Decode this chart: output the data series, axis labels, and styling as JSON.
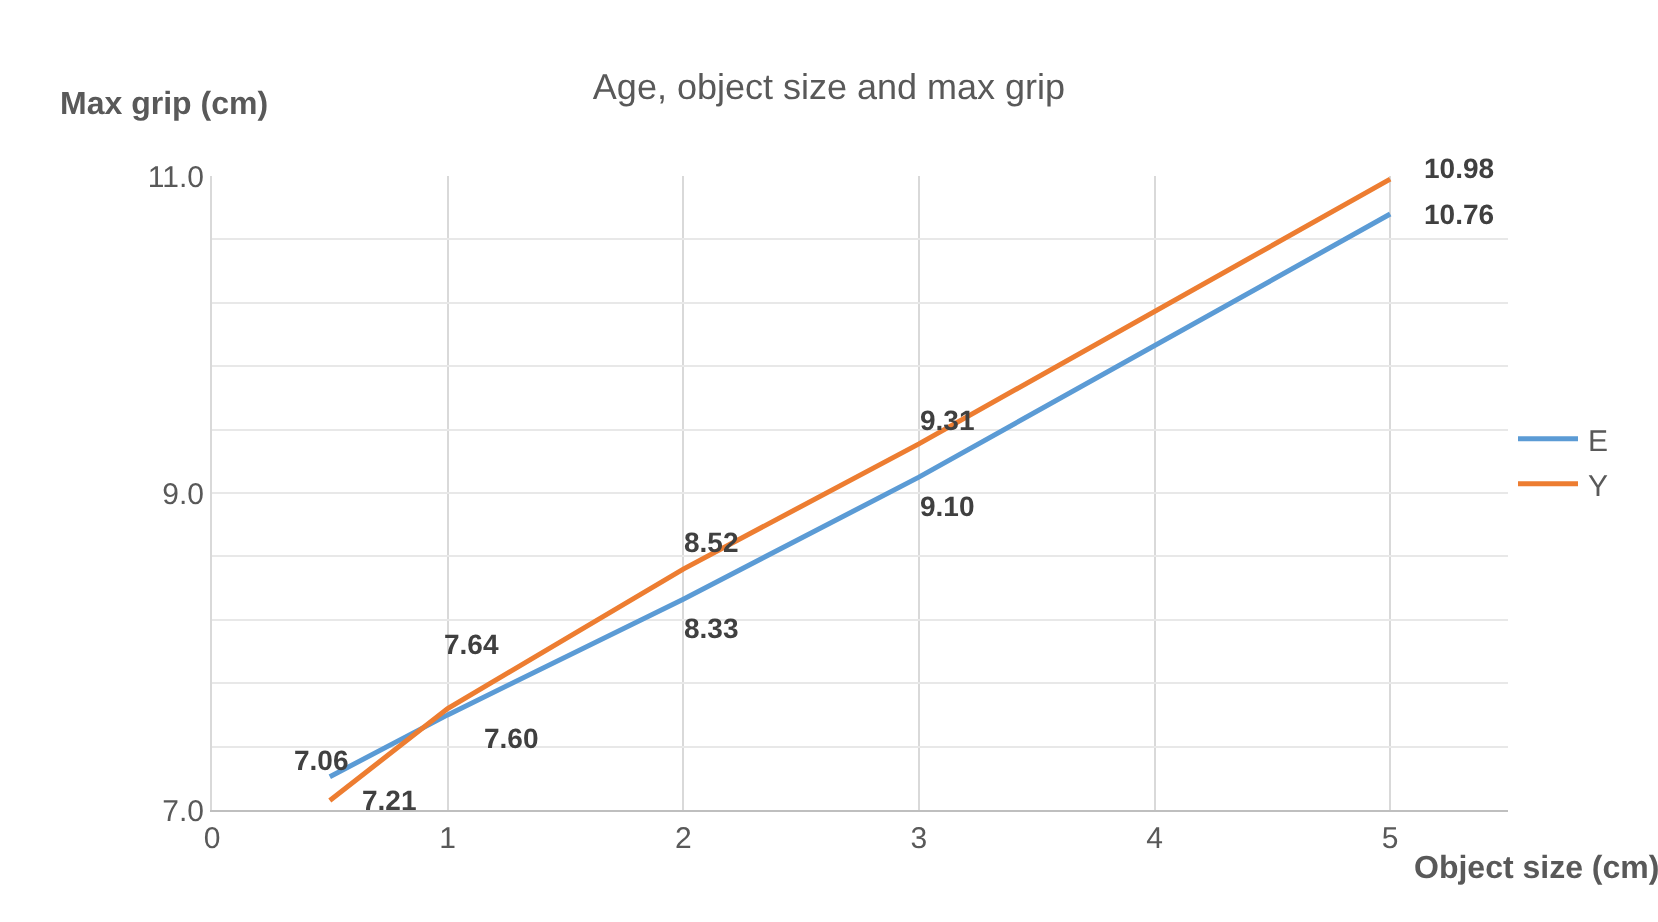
{
  "chart_data": {
    "type": "line",
    "title": "Age, object size and max grip",
    "xlabel": "Object size (cm)",
    "ylabel": "Max grip (cm)",
    "x": [
      0.5,
      1,
      2,
      3,
      5
    ],
    "series": [
      {
        "name": "E",
        "color": "#5b9bd5",
        "values": [
          7.21,
          7.6,
          8.33,
          9.1,
          10.76
        ],
        "value_labels": [
          "7.21",
          "7.60",
          "8.33",
          "9.10",
          "10.76"
        ]
      },
      {
        "name": "Y",
        "color": "#ed7d31",
        "values": [
          7.06,
          7.64,
          8.52,
          9.31,
          10.98
        ],
        "value_labels": [
          "7.06",
          "7.64",
          "8.52",
          "9.31",
          "10.98"
        ]
      }
    ],
    "xlim": [
      0,
      5.5
    ],
    "xticks": [
      0,
      1,
      2,
      3,
      4,
      5
    ],
    "ylim": [
      7,
      11
    ],
    "yticks": [
      {
        "value": 7,
        "label": "7.0"
      },
      {
        "value": 7.4,
        "label": null
      },
      {
        "value": 7.8,
        "label": null
      },
      {
        "value": 8.2,
        "label": null
      },
      {
        "value": 8.6,
        "label": null
      },
      {
        "value": 9,
        "label": "9.0"
      },
      {
        "value": 9.4,
        "label": null
      },
      {
        "value": 9.8,
        "label": null
      },
      {
        "value": 10.2,
        "label": null
      },
      {
        "value": 10.6,
        "label": null
      },
      {
        "value": 11,
        "label": "11.0"
      }
    ],
    "grid": true,
    "legend": "right",
    "marker": "none",
    "line_style": "solid"
  }
}
